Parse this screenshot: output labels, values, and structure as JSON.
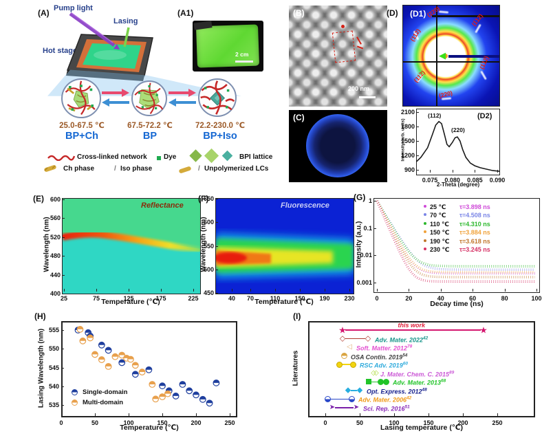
{
  "panels": {
    "a": {
      "label": "(A)",
      "pump_light": "Pump light",
      "lasing": "Lasing",
      "hot_stage": "Hot stage",
      "states": [
        {
          "temp": "25.0-67.5 ℃",
          "phase": "BP+Ch"
        },
        {
          "temp": "67.5-72.2 ℃",
          "phase": "BP"
        },
        {
          "temp": "72.2-230.0 ℃",
          "phase": "BP+Iso"
        }
      ],
      "legend": {
        "cross_linked_network": "Cross-linked network",
        "dye": "Dye",
        "bpi_lattice": "BPI lattice",
        "ch_phase": "Ch phase",
        "iso_slash": "/",
        "iso_phase": "Iso phase",
        "unpoly_slash": "/",
        "unpolymerized_lcs": "Unpolymerized LCs"
      }
    },
    "a1": {
      "label": "(A1)",
      "scalebar": "2 cm"
    },
    "b": {
      "label": "(B)",
      "scalebar": "200 nm"
    },
    "c": {
      "label": "(C)"
    },
    "d": {
      "label": "(D)"
    },
    "d1": {
      "label": "(D1)",
      "labels": [
        "(220)",
        "(1̅12)",
        "(112)",
        "(1̅12̅)",
        "(11̅2)",
        "(220)"
      ]
    },
    "d2": {
      "label": "(D2)",
      "peak1": "(112)",
      "peak2": "(220)"
    },
    "e": {
      "label": "(E)"
    },
    "f": {
      "label": "(F)"
    },
    "g": {
      "label": "(G)"
    },
    "h": {
      "label": "(H)"
    },
    "i": {
      "label": "(I)"
    }
  },
  "chart_data": [
    {
      "type": "line",
      "panel": "D2",
      "xlabel": "2-Theta (degree)",
      "ylabel": "Intensity (arb. units)",
      "xticks": [
        "0.075",
        "0.080",
        "0.085",
        "0.090"
      ],
      "yticks": [
        2100,
        1800,
        1500,
        1200,
        900
      ],
      "xlim": [
        0.0719,
        0.0906
      ],
      "ylim": [
        830,
        2170
      ],
      "peaks": [
        {
          "label": "(112)",
          "two_theta": 0.077,
          "intensity": 1905
        },
        {
          "label": "(220)",
          "two_theta": 0.081,
          "intensity": 1590
        }
      ],
      "points": [
        [
          0.0719,
          1060
        ],
        [
          0.073,
          1160
        ],
        [
          0.0745,
          1360
        ],
        [
          0.0755,
          1620
        ],
        [
          0.0763,
          1830
        ],
        [
          0.077,
          1905
        ],
        [
          0.0776,
          1860
        ],
        [
          0.0782,
          1650
        ],
        [
          0.0788,
          1430
        ],
        [
          0.0793,
          1380
        ],
        [
          0.08,
          1470
        ],
        [
          0.0806,
          1565
        ],
        [
          0.0811,
          1585
        ],
        [
          0.0817,
          1500
        ],
        [
          0.0823,
          1320
        ],
        [
          0.083,
          1160
        ],
        [
          0.084,
          1040
        ],
        [
          0.085,
          985
        ],
        [
          0.0862,
          945
        ],
        [
          0.0875,
          915
        ],
        [
          0.089,
          885
        ],
        [
          0.0905,
          870
        ]
      ]
    },
    {
      "type": "heatmap",
      "panel": "E",
      "title": "Reflectance",
      "xlabel": "Temperature (℃)",
      "ylabel": "Wavelength (nm)",
      "xticks": [
        25,
        75,
        125,
        175,
        225
      ],
      "yticks": [
        600,
        560,
        520,
        480,
        440,
        400
      ],
      "xrange": [
        25,
        230
      ],
      "yrange": [
        400,
        600
      ],
      "band": {
        "center_nm_vs_T": [
          [
            25,
            520
          ],
          [
            75,
            524
          ],
          [
            125,
            512
          ],
          [
            175,
            501
          ],
          [
            230,
            491
          ]
        ],
        "intensity": "strong red band below ~100 C fading to yellow-green by 230 C"
      }
    },
    {
      "type": "heatmap",
      "panel": "F",
      "title": "Fluorescence",
      "xlabel": "Temperature (℃)",
      "ylabel": "Wavelength (nm)",
      "xticks": [
        40,
        70,
        110,
        150,
        190,
        230
      ],
      "yticks": [
        650,
        600,
        550,
        500,
        450
      ],
      "xrange": [
        25,
        230
      ],
      "yrange": [
        450,
        650
      ],
      "band": {
        "range_nm": [
          495,
          565
        ],
        "peak_center_nm": 523,
        "intensity": "red hotspot near 520 nm below ~70 C, green toward 230 C"
      }
    },
    {
      "type": "line",
      "panel": "G",
      "xlabel": "Decay time (ns)",
      "ylabel": "Intensity (a.u.)",
      "xticks": [
        0,
        20,
        40,
        60,
        80,
        100
      ],
      "yticks": [
        "1",
        "0.1",
        "0.01",
        "0.001"
      ],
      "xlim": [
        0,
        100
      ],
      "series": [
        {
          "temp_label": "25 ℃",
          "tau_label": "τ=3.898 ns",
          "tau_ns": 3.898,
          "noise_floor": 0.0022,
          "color": "#cf4ad8"
        },
        {
          "temp_label": "70 ℃",
          "tau_label": "τ=4.508 ns",
          "tau_ns": 4.508,
          "noise_floor": 0.003,
          "color": "#7a85e6"
        },
        {
          "temp_label": "110 ℃",
          "tau_label": "τ=4.310 ns",
          "tau_ns": 4.31,
          "noise_floor": 0.004,
          "color": "#2db82d"
        },
        {
          "temp_label": "150 ℃",
          "tau_label": "τ=3.884 ns",
          "tau_ns": 3.884,
          "noise_floor": 0.0024,
          "color": "#f0a23a"
        },
        {
          "temp_label": "190 ℃",
          "tau_label": "τ=3.618 ns",
          "tau_ns": 3.618,
          "noise_floor": 0.0016,
          "color": "#c1762b"
        },
        {
          "temp_label": "230 ℃",
          "tau_label": "τ=3.245 ns",
          "tau_ns": 3.245,
          "noise_floor": 0.0011,
          "color": "#d63064"
        }
      ]
    },
    {
      "type": "scatter",
      "panel": "H",
      "xlabel": "Temperature (℃)",
      "ylabel": "Lasing Wavelength (nm)",
      "xticks": [
        0,
        50,
        100,
        150,
        200,
        250
      ],
      "yticks": [
        555,
        550,
        545,
        540,
        535
      ],
      "series": [
        {
          "name": "Single-domain",
          "color": "#1f3f9e",
          "points": [
            [
              25,
              555.0
            ],
            [
              40,
              554.3
            ],
            [
              43,
              553.4
            ],
            [
              60,
              551.0
            ],
            [
              70,
              549.6
            ],
            [
              90,
              546.3
            ],
            [
              110,
              543.2
            ],
            [
              130,
              544.4
            ],
            [
              150,
              540.1
            ],
            [
              160,
              538.8
            ],
            [
              170,
              537.4
            ],
            [
              180,
              540.5
            ],
            [
              190,
              538.8
            ],
            [
              200,
              537.7
            ],
            [
              210,
              536.5
            ],
            [
              220,
              535.5
            ],
            [
              230,
              540.9
            ]
          ]
        },
        {
          "name": "Multi-domain",
          "color": "#e8a04c",
          "points": [
            [
              28,
              555.2
            ],
            [
              32,
              552.1
            ],
            [
              43,
              552.9
            ],
            [
              50,
              548.5
            ],
            [
              60,
              547.1
            ],
            [
              70,
              545.3
            ],
            [
              80,
              547.9
            ],
            [
              90,
              548.3
            ],
            [
              97,
              547.5
            ],
            [
              103,
              547.2
            ],
            [
              110,
              545.6
            ],
            [
              120,
              543.8
            ],
            [
              135,
              540.5
            ],
            [
              140,
              536.6
            ],
            [
              150,
              537.2
            ],
            [
              158,
              538.0
            ]
          ]
        }
      ]
    },
    {
      "type": "range",
      "panel": "I",
      "xlabel": "Lasing temperature (℃)",
      "ylabel": "Literatures",
      "xticks": [
        0,
        50,
        100,
        150,
        200,
        250
      ],
      "entries": [
        {
          "label": "this work",
          "sup": "",
          "label_color": "#e0203a",
          "marker": "star",
          "marker_color": "#d4156e",
          "line_color": "#d4156e",
          "temps": [
            25,
            230
          ],
          "label_above": true
        },
        {
          "label": "Adv. Mater. 2022",
          "sup": "42",
          "label_color": "#17948a",
          "marker": "open-diamond",
          "marker_color": "#b03a2e",
          "line_color": "#b03a2e",
          "temps": [
            25,
            62
          ]
        },
        {
          "label": "Soft. Matter. 2012",
          "sup": "78",
          "label_color": "#e34fd0",
          "marker": "left-triangle",
          "marker_color": "#e2b07a",
          "temps": [
            35
          ]
        },
        {
          "label": "OSA Contin. 2019",
          "sup": "54",
          "label_color": "#3d3d3d",
          "marker": "half-circle",
          "marker_color": "#d9a441",
          "temps": [
            27
          ]
        },
        {
          "label": "RSC Adv. 2019",
          "sup": "60",
          "label_color": "#2eaadc",
          "marker": "circle",
          "marker_color": "#f2d410",
          "line_color": "#f2d410",
          "temps": [
            20,
            40
          ]
        },
        {
          "label": "J. Mater. Chem. C. 2015",
          "sup": "89",
          "label_color": "#cb59d6",
          "marker": "double-open-diamond",
          "marker_color": "#a8d830",
          "temps": [
            70
          ]
        },
        {
          "label": "Adv. Mater. 2013",
          "sup": "68",
          "label_color": "#21c428",
          "marker": "square-circles",
          "marker_color": "#21c428",
          "line_color": "#21c428",
          "temps": [
            63,
            80,
            88
          ]
        },
        {
          "label": "Opt. Express. 2012",
          "sup": "48",
          "label_color": "#151f8c",
          "marker": "diamond",
          "marker_color": "#28aee0",
          "line_color": "#28aee0",
          "temps": [
            33,
            50
          ]
        },
        {
          "label": "Adv. Mater. 2006",
          "sup": "42",
          "label_color": "#f09a18",
          "marker": "half-circle-bottom",
          "marker_color": "#2847c8",
          "line_color": "#2847c8",
          "temps": [
            3,
            38
          ]
        },
        {
          "label": "Sci. Rep. 2016",
          "sup": "51",
          "label_color": "#8a2bb8",
          "marker": "arrow",
          "marker_color": "#7a1fa8",
          "line_color": "#7a1fa8",
          "temps": [
            10,
            45
          ]
        }
      ]
    }
  ]
}
